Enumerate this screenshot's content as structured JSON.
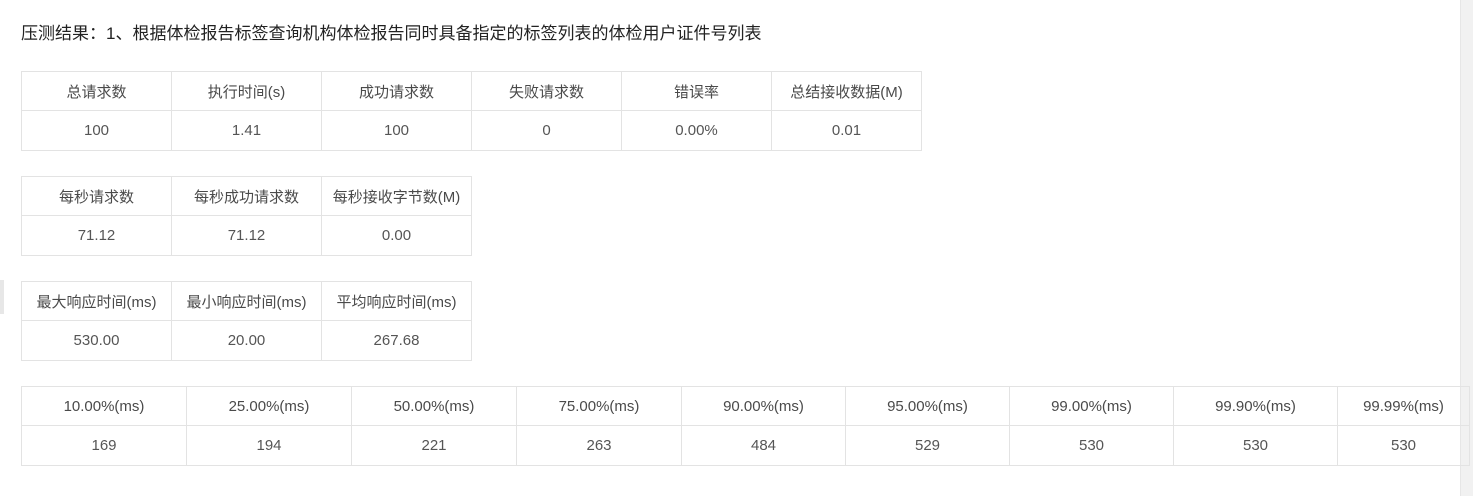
{
  "title": "压测结果：1、根据体检报告标签查询机构体检报告同时具备指定的标签列表的体检用户证件号列表",
  "summary_table": {
    "headers": [
      "总请求数",
      "执行时间(s)",
      "成功请求数",
      "失败请求数",
      "错误率",
      "总结接收数据(M)"
    ],
    "values": [
      "100",
      "1.41",
      "100",
      "0",
      "0.00%",
      "0.01"
    ]
  },
  "throughput_table": {
    "headers": [
      "每秒请求数",
      "每秒成功请求数",
      "每秒接收字节数(M)"
    ],
    "values": [
      "71.12",
      "71.12",
      "0.00"
    ]
  },
  "response_time_table": {
    "headers": [
      "最大响应时间(ms)",
      "最小响应时间(ms)",
      "平均响应时间(ms)"
    ],
    "values": [
      "530.00",
      "20.00",
      "267.68"
    ]
  },
  "percentile_table": {
    "headers": [
      "10.00%(ms)",
      "25.00%(ms)",
      "50.00%(ms)",
      "75.00%(ms)",
      "90.00%(ms)",
      "95.00%(ms)",
      "99.00%(ms)",
      "99.90%(ms)",
      "99.99%(ms)"
    ],
    "values": [
      "169",
      "194",
      "221",
      "263",
      "484",
      "529",
      "530",
      "530",
      "530"
    ]
  }
}
